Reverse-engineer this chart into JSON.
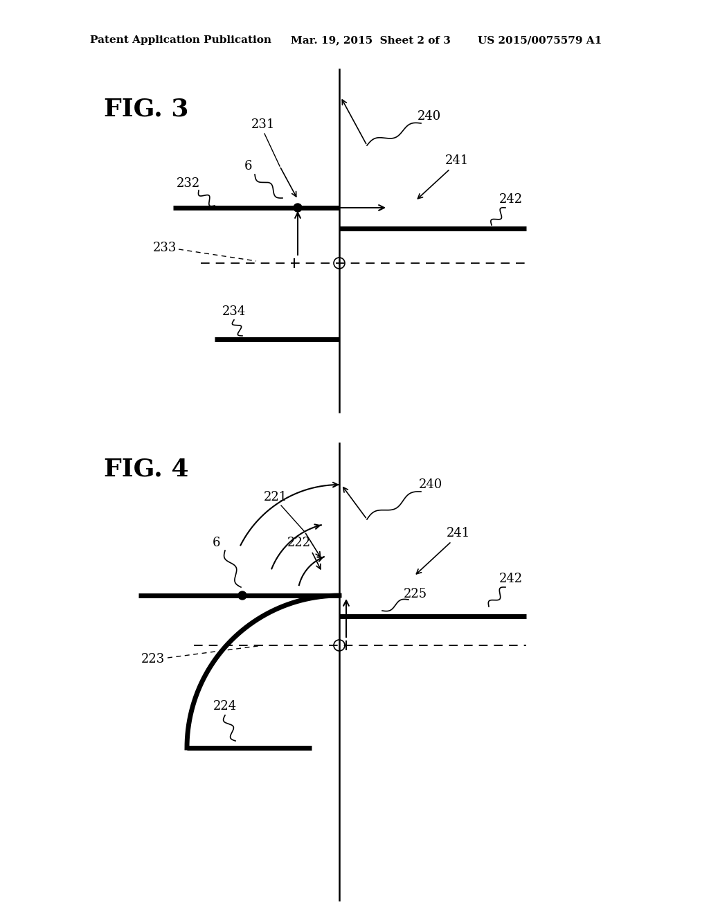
{
  "bg_color": "#ffffff",
  "header_left": "Patent Application Publication",
  "header_mid": "Mar. 19, 2015  Sheet 2 of 3",
  "header_right": "US 2015/0075579 A1",
  "fig3_label": "FIG. 3",
  "fig4_label": "FIG. 4"
}
